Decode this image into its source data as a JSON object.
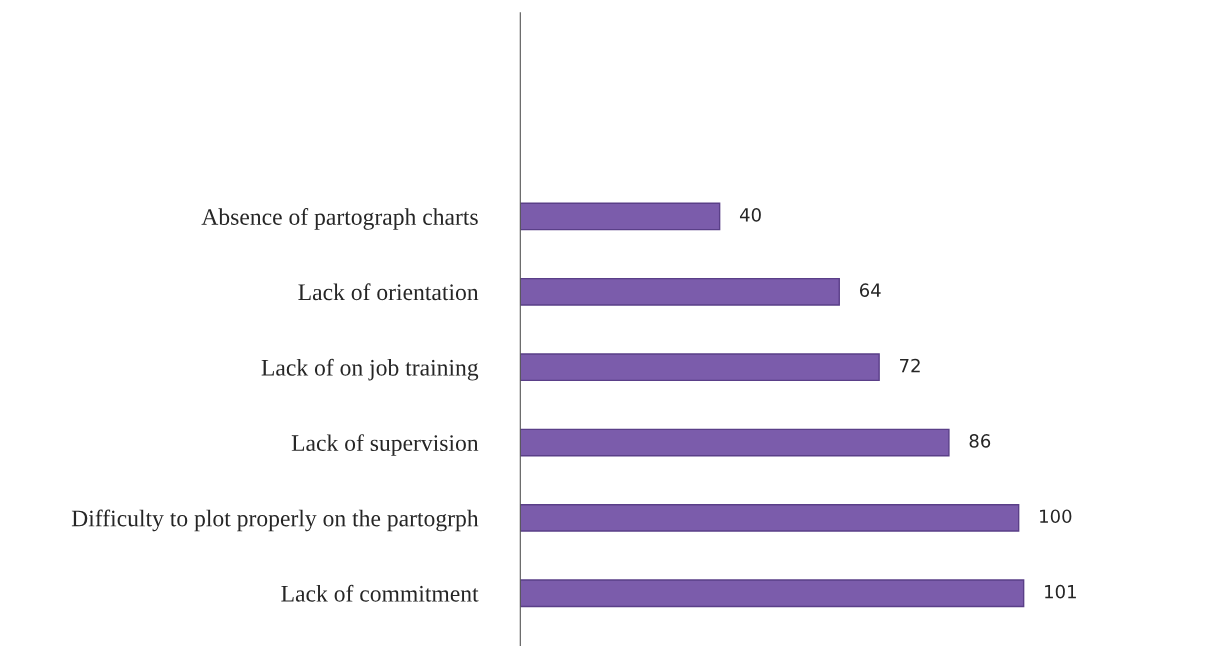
{
  "chart_data": {
    "type": "bar",
    "orientation": "horizontal",
    "categories": [
      "Absence of partograph charts",
      "Lack of orientation",
      "Lack of on job training",
      "Lack of supervision",
      "Difficulty to plot properly on the partogrph",
      "Lack of commitment"
    ],
    "values": [
      40,
      64,
      72,
      86,
      100,
      101
    ],
    "color": "#7b5cab",
    "data_labels": true,
    "tick_labels": "y",
    "grid": false,
    "legend": false
  }
}
